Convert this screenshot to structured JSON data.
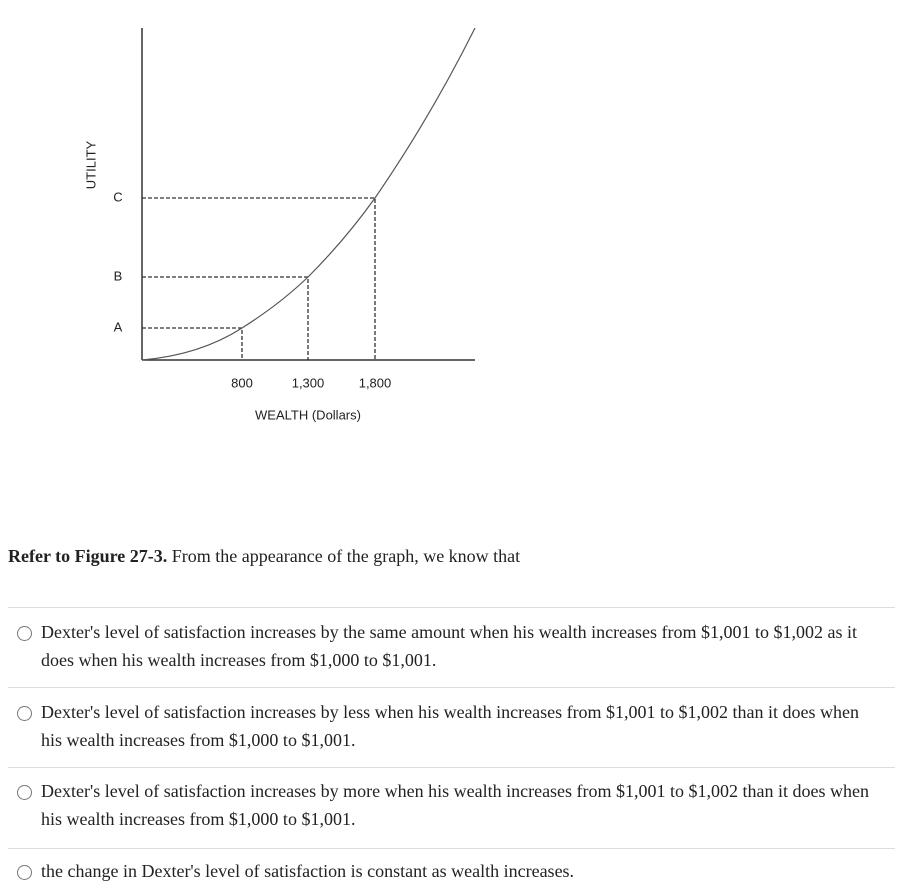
{
  "figure": {
    "y_axis_label": "UTILITY",
    "y_labels": [
      "A",
      "B",
      "C"
    ],
    "x_labels": [
      "800",
      "1,300",
      "1,800"
    ],
    "x_axis_label": "WEALTH (Dollars)"
  },
  "question": {
    "reference": "Refer to Figure 27-3.",
    "text": "From the appearance of the graph, we know that"
  },
  "options": [
    "Dexter's level of satisfaction increases by the same amount when his wealth increases from $1,001 to $1,002 as it does when his wealth increases from $1,000 to $1,001.",
    "Dexter's level of satisfaction increases by less when his wealth increases from $1,001 to $1,002 than it does when his wealth increases from $1,000 to $1,001.",
    "Dexter's level of satisfaction increases by more when his wealth increases from $1,001 to $1,002 than it does when his wealth increases from $1,000 to $1,001.",
    "the change in Dexter's level of satisfaction is constant as wealth increases."
  ]
}
